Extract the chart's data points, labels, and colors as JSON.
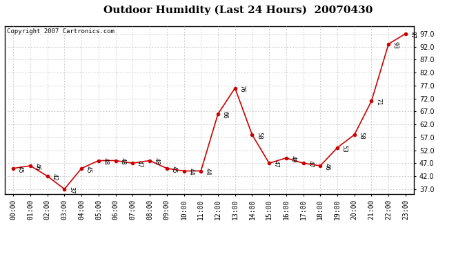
{
  "title": "Outdoor Humidity (Last 24 Hours)  20070430",
  "copyright": "Copyright 2007 Cartronics.com",
  "x_labels": [
    "00:00",
    "01:00",
    "02:00",
    "03:00",
    "04:00",
    "05:00",
    "06:00",
    "07:00",
    "08:00",
    "09:00",
    "10:00",
    "11:00",
    "12:00",
    "13:00",
    "14:00",
    "15:00",
    "16:00",
    "17:00",
    "18:00",
    "19:00",
    "20:00",
    "21:00",
    "22:00",
    "23:00"
  ],
  "x_values": [
    0,
    1,
    2,
    3,
    4,
    5,
    6,
    7,
    8,
    9,
    10,
    11,
    12,
    13,
    14,
    15,
    16,
    17,
    18,
    19,
    20,
    21,
    22,
    23
  ],
  "y_values": [
    45,
    46,
    42,
    37,
    45,
    48,
    48,
    47,
    48,
    45,
    44,
    44,
    66,
    76,
    58,
    47,
    49,
    47,
    46,
    53,
    58,
    71,
    93,
    97
  ],
  "line_color": "#cc0000",
  "marker_color": "#cc0000",
  "bg_color": "#ffffff",
  "plot_bg_color": "#ffffff",
  "grid_color": "#bbbbbb",
  "title_fontsize": 11,
  "copyright_fontsize": 6.5,
  "tick_fontsize": 7,
  "annot_fontsize": 6.5,
  "ylim": [
    35,
    100
  ],
  "yticks": [
    37.0,
    42.0,
    47.0,
    52.0,
    57.0,
    62.0,
    67.0,
    72.0,
    77.0,
    82.0,
    87.0,
    92.0,
    97.0
  ]
}
